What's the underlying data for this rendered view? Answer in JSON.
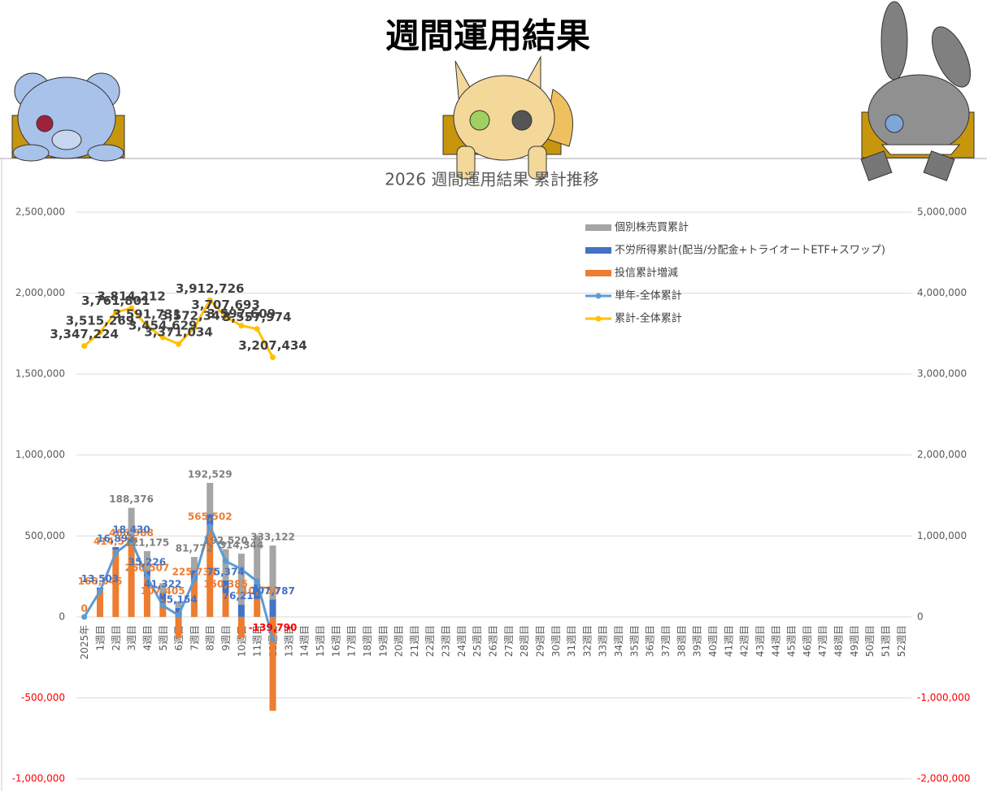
{
  "header": {
    "title": "週間運用結果"
  },
  "chart_data": {
    "type": "combo",
    "title": "2026 週間運用結果 累計推移",
    "categories": [
      "2025年",
      "1週目",
      "2週目",
      "3週目",
      "4週目",
      "5週目",
      "6週目",
      "7週目",
      "8週目",
      "9週目",
      "10週目",
      "11週目",
      "12週目",
      "13週目",
      "14週目",
      "15週目",
      "16週目",
      "17週目",
      "18週目",
      "19週目",
      "20週目",
      "21週目",
      "22週目",
      "23週目",
      "24週目",
      "25週目",
      "26週目",
      "27週目",
      "28週目",
      "29週目",
      "30週目",
      "31週目",
      "32週目",
      "33週目",
      "34週目",
      "35週目",
      "36週目",
      "37週目",
      "38週目",
      "39週目",
      "40週目",
      "41週目",
      "42週目",
      "43週目",
      "44週目",
      "45週目",
      "46週目",
      "47週目",
      "48週目",
      "49週目",
      "50週目",
      "51週目",
      "52週目"
    ],
    "ylim": [
      -1000000,
      2500000
    ],
    "yticks": [
      {
        "value": -1000000,
        "label": "-1,000,000"
      },
      {
        "value": -500000,
        "label": "-500,000"
      },
      0,
      {
        "value": 500000,
        "label": "500,000"
      },
      {
        "value": 1000000,
        "label": "1,000,000"
      },
      {
        "value": 1500000,
        "label": "1,500,000"
      },
      {
        "value": 2000000,
        "label": "2,000,000"
      },
      {
        "value": 2500000,
        "label": "2,500,000"
      }
    ],
    "y2lim": [
      -2000000,
      5000000
    ],
    "y2ticks": [
      {
        "value": -2000000,
        "label": "-2,000,000"
      },
      {
        "value": -1000000,
        "label": "-1,000,000"
      },
      0,
      {
        "value": 1000000,
        "label": "1,000,000"
      },
      {
        "value": 2000000,
        "label": "2,000,000"
      },
      {
        "value": 3000000,
        "label": "3,000,000"
      },
      {
        "value": 4000000,
        "label": "4,000,000"
      },
      {
        "value": 5000000,
        "label": "5,000,000"
      }
    ],
    "grid": true,
    "series": [
      {
        "name": "個別株売買累計",
        "kind": "bar",
        "color": "#a5a5a5",
        "label_color": "#808080",
        "values": [
          null,
          null,
          null,
          188376,
          121175,
          60000,
          40000,
          81772,
          192529,
          192520,
          314344,
          300000,
          333122,
          null,
          null,
          null,
          null,
          null,
          null,
          null,
          null,
          null,
          null,
          null,
          null,
          null,
          null,
          null,
          null,
          null,
          null,
          null,
          null,
          null,
          null,
          null,
          null,
          null,
          null,
          null,
          null,
          null,
          null,
          null,
          null,
          null,
          null,
          null,
          null,
          null,
          null,
          null,
          null
        ],
        "value_labels": [
          null,
          null,
          null,
          "188,376",
          "121,175",
          null,
          null,
          "81,772",
          "192,529",
          "192,520",
          "314,344",
          null,
          "333,122",
          null,
          null,
          null,
          null,
          null,
          null,
          null,
          null,
          null,
          null,
          null,
          null,
          null,
          null,
          null,
          null,
          null,
          null,
          null,
          null,
          null,
          null,
          null,
          null,
          null,
          null,
          null,
          null,
          null,
          null,
          null,
          null,
          null,
          null,
          null,
          null,
          null,
          null,
          null,
          null
        ]
      },
      {
        "name": "不労所得累計(配当/分配金+トライオートETF+スワップ)",
        "kind": "bar",
        "color": "#4472c4",
        "label_color": "#4472c4",
        "values": [
          null,
          13503,
          16892,
          18430,
          35226,
          41322,
          55154,
          62768,
          70000,
          75374,
          76213,
          93120,
          107787,
          null,
          null,
          null,
          null,
          null,
          null,
          null,
          null,
          null,
          null,
          null,
          null,
          null,
          null,
          null,
          null,
          null,
          null,
          null,
          null,
          null,
          null,
          null,
          null,
          null,
          null,
          null,
          null,
          null,
          null,
          null,
          null,
          null,
          null,
          null,
          null,
          null,
          null,
          null,
          null
        ],
        "value_labels": [
          null,
          "13,503",
          "16,892",
          "18,430",
          "35,226",
          "41,322",
          "55,154",
          null,
          null,
          "75,374",
          "76,213",
          null,
          "107,787",
          null,
          null,
          null,
          null,
          null,
          null,
          null,
          null,
          null,
          null,
          null,
          null,
          null,
          null,
          null,
          null,
          null,
          null,
          null,
          null,
          null,
          null,
          null,
          null,
          null,
          null,
          null,
          null,
          null,
          null,
          null,
          null,
          null,
          null,
          null,
          null,
          null,
          null,
          null,
          null
        ]
      },
      {
        "name": "投信累計増減",
        "kind": "bar",
        "color": "#ed7d31",
        "label_color": "#ed7d31",
        "values": [
          0,
          168046,
          414577,
          466988,
          250507,
          107405,
          -131000,
          225734,
          565502,
          150385,
          -130000,
          110750,
          -580000,
          null,
          null,
          null,
          null,
          null,
          null,
          null,
          null,
          null,
          null,
          null,
          null,
          null,
          null,
          null,
          null,
          null,
          null,
          null,
          null,
          null,
          null,
          null,
          null,
          null,
          null,
          null,
          null,
          null,
          null,
          null,
          null,
          null,
          null,
          null,
          null,
          null,
          null,
          null,
          null
        ],
        "value_labels": [
          "0",
          "168,046",
          "414,577",
          "466,988",
          "250,507",
          "107,405",
          null,
          "225,734",
          "565,502",
          "150,385",
          null,
          "110,750",
          null,
          null,
          null,
          null,
          null,
          null,
          null,
          null,
          null,
          null,
          null,
          null,
          null,
          null,
          null,
          null,
          null,
          null,
          null,
          null,
          null,
          null,
          null,
          null,
          null,
          null,
          null,
          null,
          null,
          null,
          null,
          null,
          null,
          null,
          null,
          null,
          null,
          null,
          null,
          null,
          null
        ]
      },
      {
        "name": "単年-全体累計",
        "kind": "line",
        "color": "#5b9bd5",
        "label_color": "#4472c4",
        "values": [
          0,
          160000,
          395000,
          470000,
          245000,
          70000,
          10000,
          230000,
          560000,
          345000,
          295000,
          220000,
          -139790,
          null,
          null,
          null,
          null,
          null,
          null,
          null,
          null,
          null,
          null,
          null,
          null,
          null,
          null,
          null,
          null,
          null,
          null,
          null,
          null,
          null,
          null,
          null,
          null,
          null,
          null,
          null,
          null,
          null,
          null,
          null,
          null,
          null,
          null,
          null,
          null,
          null,
          null,
          null,
          null
        ],
        "value_labels": [
          null,
          null,
          null,
          null,
          null,
          null,
          null,
          null,
          null,
          null,
          null,
          null,
          "-139,790",
          null,
          null,
          null,
          null,
          null,
          null,
          null,
          null,
          null,
          null,
          null,
          null,
          null,
          null,
          null,
          null,
          null,
          null,
          null,
          null,
          null,
          null,
          null,
          null,
          null,
          null,
          null,
          null,
          null,
          null,
          null,
          null,
          null,
          null,
          null,
          null,
          null,
          null,
          null,
          null
        ]
      },
      {
        "name": "累計-全体累計",
        "kind": "line",
        "axis": "y2",
        "color": "#ffc000",
        "label_color": "#404040",
        "values": [
          3347224,
          3515269,
          3761801,
          3814212,
          3591731,
          3454629,
          3371034,
          3572347,
          3912726,
          3707693,
          3597609,
          3557974,
          3207434,
          null,
          null,
          null,
          null,
          null,
          null,
          null,
          null,
          null,
          null,
          null,
          null,
          null,
          null,
          null,
          null,
          null,
          null,
          null,
          null,
          null,
          null,
          null,
          null,
          null,
          null,
          null,
          null,
          null,
          null,
          null,
          null,
          null,
          null,
          null,
          null,
          null,
          null,
          null,
          null
        ],
        "value_labels": [
          "3,347,224",
          "3,515,269",
          "3,761,801",
          "3,814,212",
          "3,591,731",
          "3,454,629",
          "3,371,034",
          "3,572,347",
          "3,912,726",
          "3,707,693",
          "3,597,609",
          "3,557,974",
          "3,207,434",
          null,
          null,
          null,
          null,
          null,
          null,
          null,
          null,
          null,
          null,
          null,
          null,
          null,
          null,
          null,
          null,
          null,
          null,
          null,
          null,
          null,
          null,
          null,
          null,
          null,
          null,
          null,
          null,
          null,
          null,
          null,
          null,
          null,
          null,
          null,
          null,
          null,
          null,
          null,
          null
        ]
      }
    ]
  }
}
